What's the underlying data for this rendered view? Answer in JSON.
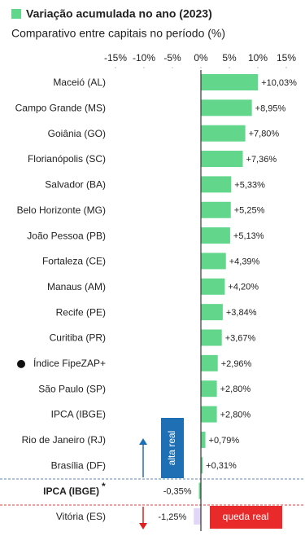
{
  "chart_data": {
    "type": "hbar",
    "title": "Variação acumulada no ano (2023)",
    "subtitle": "Comparativo entre capitais no período (%)",
    "categories": [
      "Maceió (AL)",
      "Campo Grande (MS)",
      "Goiânia (GO)",
      "Florianópolis (SC)",
      "Salvador (BA)",
      "Belo Horizonte (MG)",
      "João Pessoa (PB)",
      "Fortaleza (CE)",
      "Manaus (AM)",
      "Recife (PE)",
      "Curitiba (PR)",
      "Índice FipeZAP+",
      "São Paulo (SP)",
      "IPCA (IBGE)",
      "Rio de Janeiro (RJ)",
      "Brasília (DF)",
      "IPCA (IBGE)",
      "Vitória (ES)"
    ],
    "values": [
      10.03,
      8.95,
      7.8,
      7.36,
      5.33,
      5.25,
      5.13,
      4.39,
      4.2,
      3.84,
      3.67,
      2.96,
      2.8,
      2.8,
      0.79,
      0.31,
      -0.35,
      -1.25
    ],
    "value_labels": [
      "+10,03%",
      "+8,95%",
      "+7,80%",
      "+7,36%",
      "+5,33%",
      "+5,25%",
      "+5,13%",
      "+4,39%",
      "+4,20%",
      "+3,84%",
      "+3,67%",
      "+2,96%",
      "+2,80%",
      "+2,80%",
      "+0,79%",
      "+0,31%",
      "-0,35%",
      "-1,25%"
    ],
    "colors": [
      "#62d68a",
      "#62d68a",
      "#62d68a",
      "#62d68a",
      "#62d68a",
      "#62d68a",
      "#62d68a",
      "#62d68a",
      "#62d68a",
      "#62d68a",
      "#62d68a",
      "#62d68a",
      "#62d68a",
      "#62d68a",
      "#62d68a",
      "#62d68a",
      "#62d68a",
      "#e2d6f6"
    ],
    "color": "#62d68a",
    "reference_marker": "*",
    "xlim": [
      -15,
      15
    ],
    "xticks": [
      {
        "value": -15,
        "label": "-15%"
      },
      {
        "value": -10,
        "label": "-10%"
      },
      {
        "value": -5,
        "label": "-5%"
      },
      {
        "value": 0,
        "label": "0%"
      },
      {
        "value": 5,
        "label": "5%"
      },
      {
        "value": 10,
        "label": "10%"
      },
      {
        "value": 15,
        "label": "15%"
      }
    ],
    "annotations": [
      "alta real",
      "queda real"
    ]
  }
}
